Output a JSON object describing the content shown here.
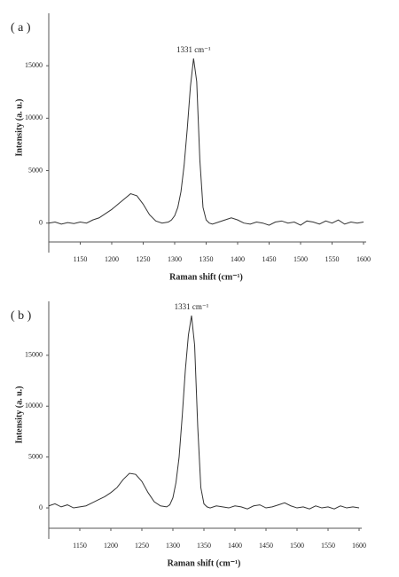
{
  "chart_data": [
    {
      "type": "line",
      "panel_label": "( a )",
      "annotation": "1331 cm⁻¹",
      "xlabel": "Raman shift (cm⁻¹)",
      "ylabel": "Intensity (a. u.)",
      "x": [
        1100,
        1110,
        1120,
        1130,
        1140,
        1150,
        1160,
        1170,
        1180,
        1190,
        1200,
        1210,
        1220,
        1230,
        1240,
        1250,
        1260,
        1270,
        1280,
        1290,
        1295,
        1300,
        1305,
        1310,
        1315,
        1320,
        1325,
        1330,
        1335,
        1340,
        1345,
        1350,
        1355,
        1360,
        1370,
        1380,
        1390,
        1400,
        1410,
        1420,
        1430,
        1440,
        1450,
        1460,
        1470,
        1480,
        1490,
        1500,
        1510,
        1520,
        1530,
        1540,
        1550,
        1560,
        1570,
        1580,
        1590,
        1600
      ],
      "series": [
        {
          "color": "#333333",
          "values": [
            0,
            100,
            -100,
            50,
            -50,
            100,
            0,
            300,
            500,
            900,
            1300,
            1800,
            2300,
            2800,
            2600,
            1800,
            800,
            200,
            0,
            100,
            300,
            700,
            1500,
            3000,
            5500,
            9000,
            13000,
            15700,
            13500,
            6000,
            1500,
            300,
            0,
            -100,
            100,
            300,
            500,
            300,
            0,
            -100,
            100,
            0,
            -200,
            100,
            200,
            0,
            100,
            -200,
            200,
            100,
            -100,
            200,
            0,
            300,
            -100,
            100,
            0,
            100
          ]
        }
      ],
      "xlim": [
        1100,
        1600
      ],
      "xticks": [
        1150,
        1200,
        1250,
        1300,
        1350,
        1400,
        1450,
        1500,
        1550,
        1600
      ],
      "ylim": [
        -1800,
        20000
      ],
      "yticks": [
        0,
        5000,
        10000,
        15000
      ]
    },
    {
      "type": "line",
      "panel_label": "( b )",
      "annotation": "1331 cm⁻¹",
      "xlabel": "Raman shift (cm⁻¹)",
      "ylabel": "Intensity (a. u.)",
      "x": [
        1100,
        1110,
        1120,
        1130,
        1140,
        1150,
        1160,
        1170,
        1180,
        1190,
        1200,
        1210,
        1220,
        1230,
        1240,
        1250,
        1260,
        1270,
        1280,
        1290,
        1295,
        1300,
        1305,
        1310,
        1315,
        1320,
        1325,
        1330,
        1335,
        1340,
        1345,
        1350,
        1355,
        1360,
        1370,
        1380,
        1390,
        1400,
        1410,
        1420,
        1430,
        1440,
        1450,
        1460,
        1470,
        1480,
        1490,
        1500,
        1510,
        1520,
        1530,
        1540,
        1550,
        1560,
        1570,
        1580,
        1590,
        1600
      ],
      "series": [
        {
          "color": "#333333",
          "values": [
            200,
            400,
            100,
            300,
            0,
            100,
            200,
            500,
            800,
            1100,
            1500,
            2000,
            2800,
            3400,
            3300,
            2600,
            1500,
            600,
            200,
            100,
            300,
            1000,
            2500,
            5000,
            9000,
            13500,
            17000,
            18900,
            16000,
            8000,
            2000,
            400,
            100,
            0,
            200,
            100,
            0,
            200,
            100,
            -100,
            200,
            300,
            0,
            100,
            300,
            500,
            200,
            0,
            100,
            -100,
            200,
            0,
            100,
            -100,
            200,
            0,
            100,
            0
          ]
        }
      ],
      "xlim": [
        1100,
        1600
      ],
      "xticks": [
        1150,
        1200,
        1250,
        1300,
        1350,
        1400,
        1450,
        1500,
        1550,
        1600
      ],
      "ylim": [
        -2000,
        20300
      ],
      "yticks": [
        0,
        5000,
        10000,
        15000
      ]
    }
  ]
}
